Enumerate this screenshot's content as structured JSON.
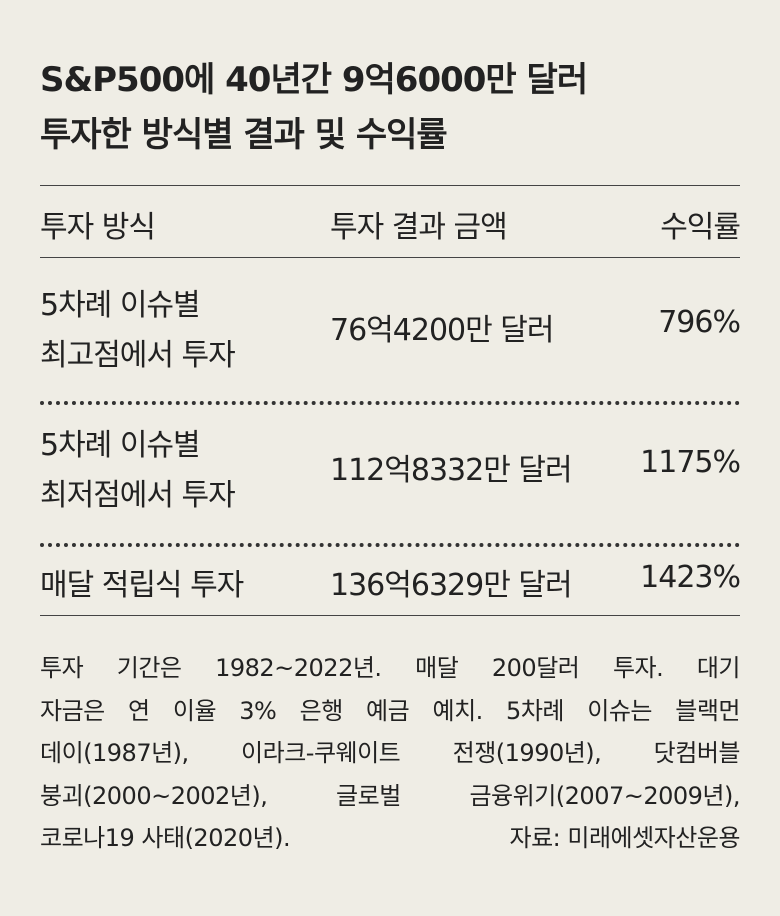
{
  "header": {
    "title_lines": [
      "S&P500에 40년간 9억6000만 달러",
      "투자한 방식별 결과 및 수익률"
    ]
  },
  "table": {
    "columns": [
      "투자 방식",
      "투자 결과 금액",
      "수익률"
    ],
    "rows": [
      {
        "method": [
          "5차례 이슈별",
          "최고점에서 투자"
        ],
        "amount": "76억4200만 달러",
        "return": "796%"
      },
      {
        "method": [
          "5차례 이슈별",
          "최저점에서 투자"
        ],
        "amount": "112억8332만 달러",
        "return": "1175%"
      },
      {
        "method": [
          "매달 적립식 투자"
        ],
        "amount": "136억6329만 달러",
        "return": "1423%"
      }
    ]
  },
  "footnote": {
    "lines": [
      "투자 기간은 1982~2022년. 매달 200달러 투자. 대기",
      "자금은 연 이율 3% 은행 예금 예치. 5차례 이슈는 블랙먼",
      "데이(1987년), 이라크-쿠웨이트 전쟁(1990년), 닷컴버블",
      "붕괴(2000~2002년), 글로벌 금융위기(2007~2009년),",
      "코로나19 사태(2020년)."
    ],
    "source": "자료: 미래에셋자산운용"
  }
}
